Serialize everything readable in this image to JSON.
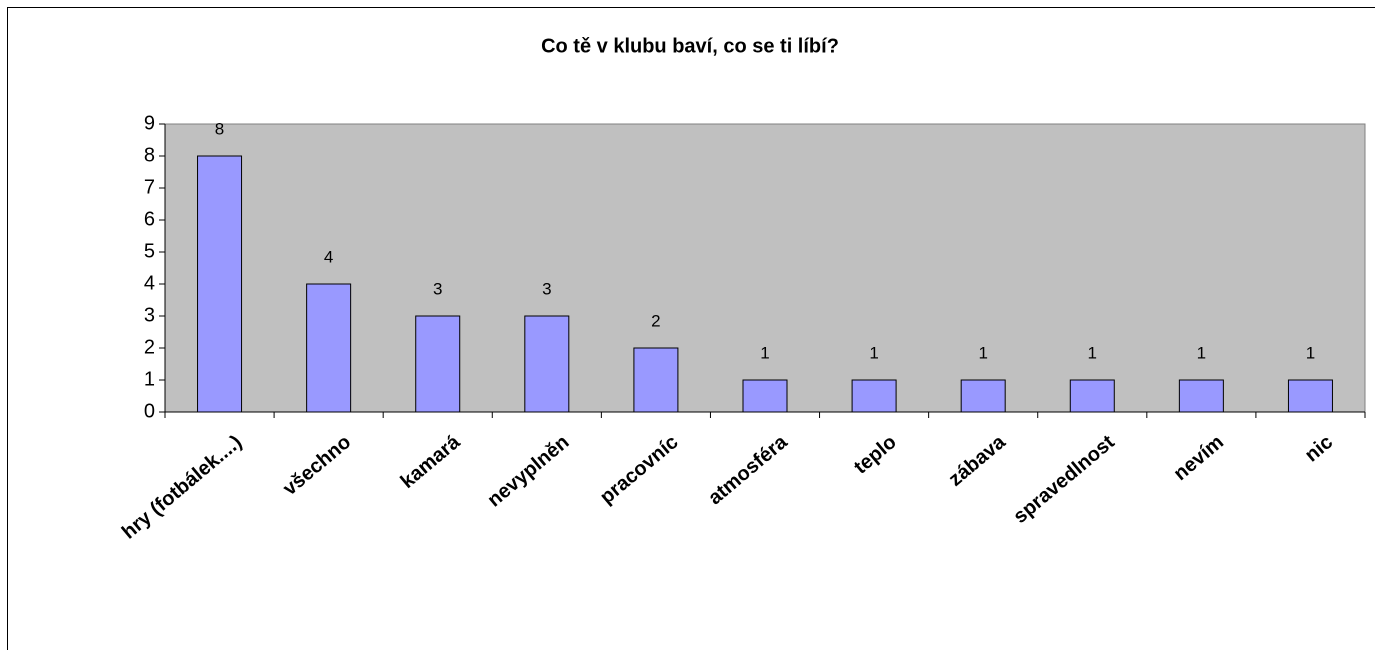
{
  "chart_data": {
    "type": "bar",
    "title": "Co tě v klubu baví, co se ti líbí?",
    "categories": [
      "hry (fotbálek....)",
      "všechno",
      "kamará",
      "nevyplněn",
      "pracovníc",
      "atmosféra",
      "teplo",
      "zábava",
      "spravedlnost",
      "nevím",
      "nic"
    ],
    "values": [
      8,
      4,
      3,
      3,
      2,
      1,
      1,
      1,
      1,
      1,
      1
    ],
    "color": "#9999ff",
    "ylim": [
      0,
      9
    ],
    "yticks": [
      0,
      1,
      2,
      3,
      4,
      5,
      6,
      7,
      8,
      9
    ],
    "grid": false
  }
}
